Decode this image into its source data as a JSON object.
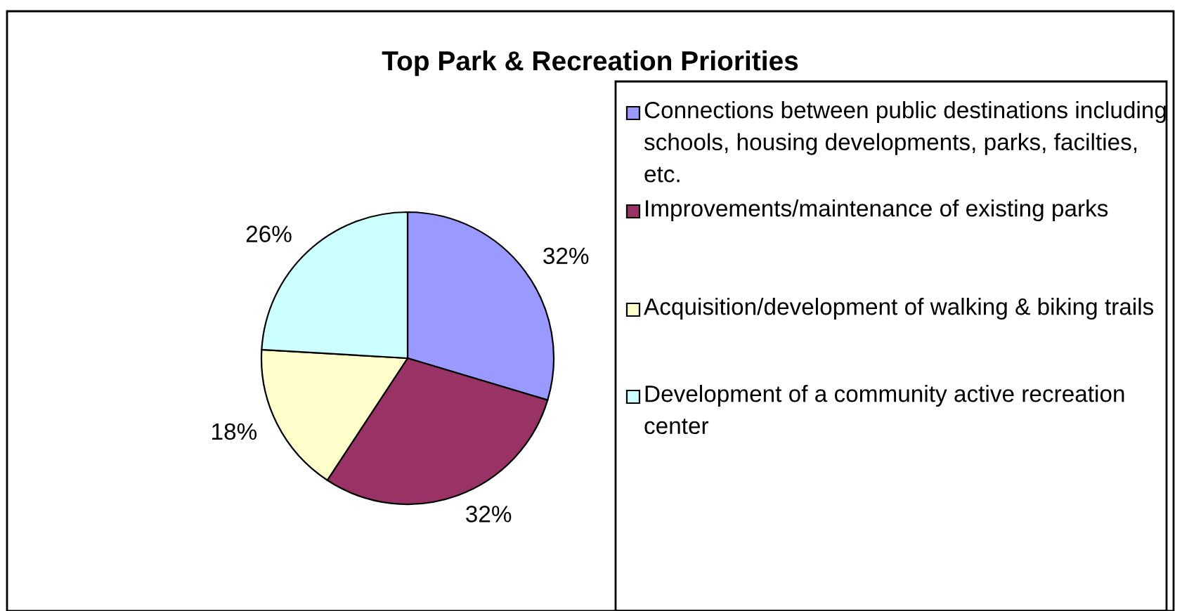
{
  "chart_data": {
    "type": "pie",
    "title": "Top Park & Recreation Priorities",
    "categories": [
      "Connections between public destinations including schools, housing developments, parks, facilties, etc.",
      "Improvements/maintenance of existing parks",
      "Acquisition/development of walking & biking trails",
      "Development of a community active recreation center"
    ],
    "values": [
      32,
      32,
      18,
      26
    ],
    "value_labels": [
      "32%",
      "32%",
      "18%",
      "26%"
    ],
    "colors": [
      "#9999ff",
      "#993366",
      "#ffffcc",
      "#ccffff"
    ],
    "legend": "right"
  }
}
